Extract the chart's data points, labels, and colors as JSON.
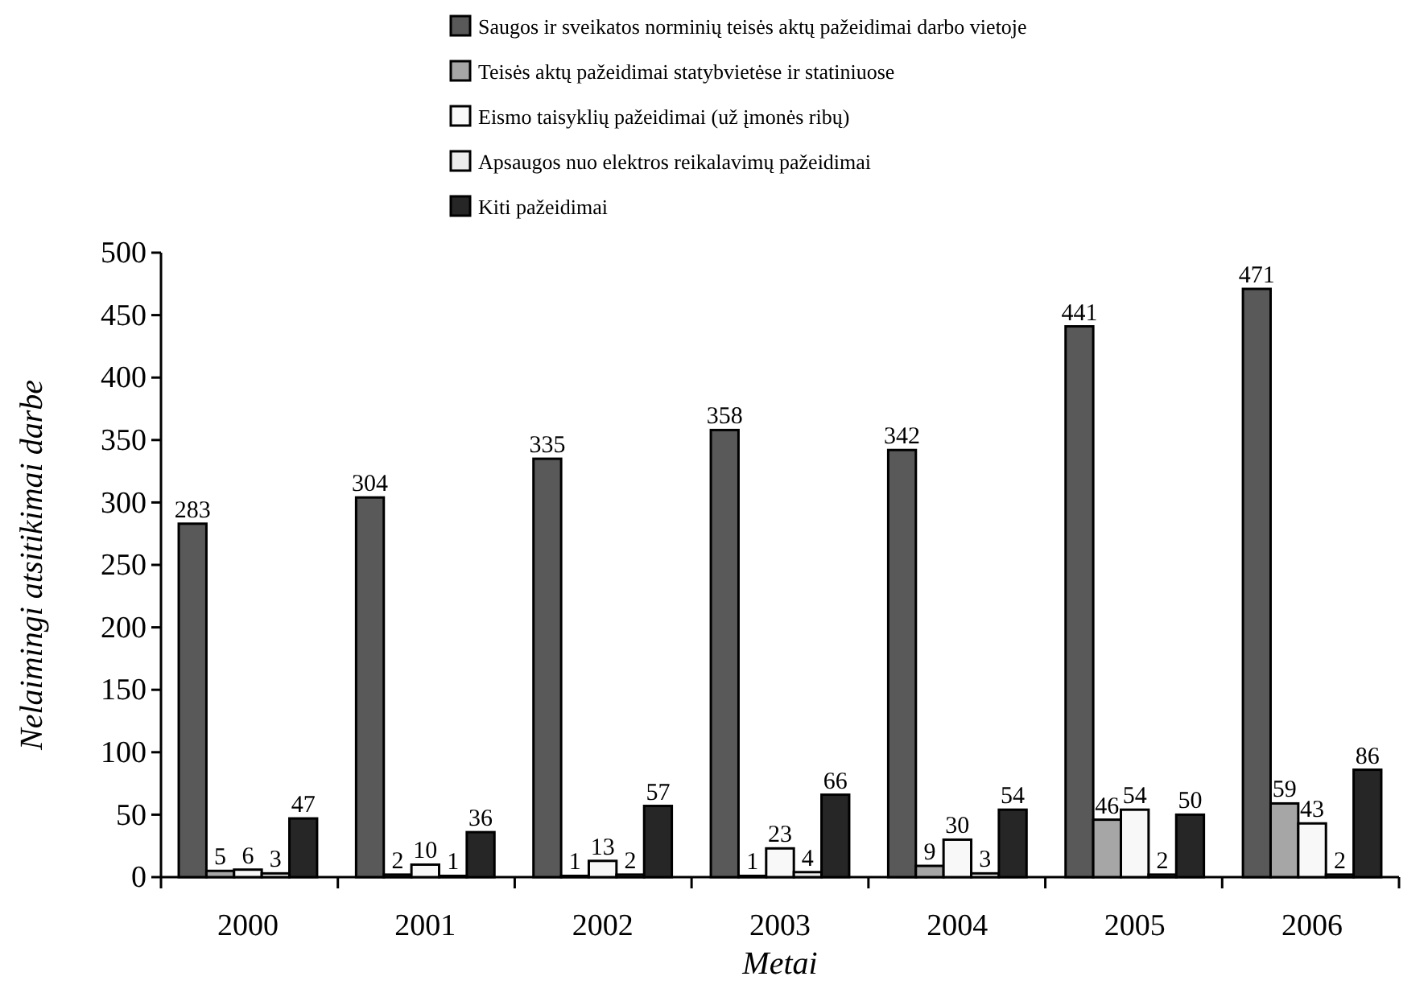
{
  "chart_data": {
    "type": "bar",
    "xlabel": "Metai",
    "ylabel": "Nelaimingi atsitikimai darbe",
    "categories": [
      "2000",
      "2001",
      "2002",
      "2003",
      "2004",
      "2005",
      "2006"
    ],
    "series": [
      {
        "name": "Saugos ir sveikatos norminių teisės aktų pažeidimai darbo vietoje",
        "color": "#595959",
        "values": [
          283,
          304,
          335,
          358,
          342,
          441,
          471
        ]
      },
      {
        "name": "Teisės aktų pažeidimai statybvietėse ir statiniuose",
        "color": "#a6a6a6",
        "values": [
          5,
          2,
          1,
          1,
          9,
          46,
          59
        ]
      },
      {
        "name": "Eismo taisyklių pažeidimai (už įmonės ribų)",
        "color": "#f8f8f8",
        "values": [
          6,
          10,
          13,
          23,
          30,
          54,
          43
        ]
      },
      {
        "name": "Apsaugos nuo elektros reikalavimų pažeidimai",
        "color": "#ececec",
        "values": [
          3,
          1,
          2,
          4,
          3,
          2,
          2
        ]
      },
      {
        "name": "Kiti pažeidimai",
        "color": "#262626",
        "values": [
          47,
          36,
          57,
          66,
          54,
          50,
          86
        ]
      }
    ],
    "ylim": [
      0,
      500
    ],
    "yticks": [
      0,
      50,
      100,
      150,
      200,
      250,
      300,
      350,
      400,
      450,
      500
    ],
    "data_labels": true,
    "legend": "top",
    "grid": false
  }
}
